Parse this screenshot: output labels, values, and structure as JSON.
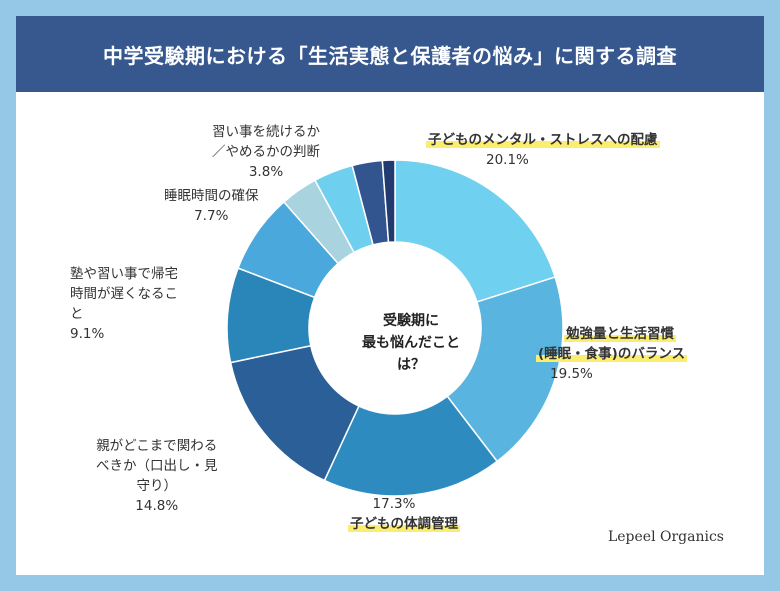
{
  "title": "中学受験期における「生活実態と保護者の悩み」に関する調査",
  "brand": "Lepeel Organics",
  "chart_data": {
    "type": "pie",
    "donut": true,
    "center_label": [
      "受験期に",
      "最も悩んだことは？"
    ],
    "slices": [
      {
        "label": [
          "子どものメンタル・ストレスへの配慮"
        ],
        "value": 20.1,
        "display": "20.1%",
        "color": "#6fd0ef",
        "highlight": true
      },
      {
        "label": [
          "勉強量と生活習慣",
          "(睡眠・食事)のバランス"
        ],
        "value": 19.5,
        "display": "19.5%",
        "color": "#5ab4e0",
        "highlight": true
      },
      {
        "label": [
          "子どもの体調管理"
        ],
        "value": 17.3,
        "display": "17.3%",
        "color": "#2e8bc0",
        "highlight": true
      },
      {
        "label": [
          "親がどこまで関わる",
          "べきか（口出し・見",
          "守り）"
        ],
        "value": 14.8,
        "display": "14.8%",
        "color": "#2a5f98",
        "highlight": false
      },
      {
        "label": [
          "塾や習い事で帰宅",
          "時間が遅くなるこ",
          "と"
        ],
        "value": 9.1,
        "display": "9.1%",
        "color": "#2a86b8",
        "highlight": false
      },
      {
        "label": [
          "睡眠時間の確保"
        ],
        "value": 7.7,
        "display": "7.7%",
        "color": "#4aa8dc",
        "highlight": false
      },
      {
        "label": [],
        "value": 3.6,
        "display": "",
        "color": "#a8d3df",
        "highlight": false
      },
      {
        "label": [
          "習い事を続けるか",
          "／やめるかの判断"
        ],
        "value": 3.8,
        "display": "3.8%",
        "color": "#6ecfee",
        "highlight": false
      },
      {
        "label": [],
        "value": 2.9,
        "display": "",
        "color": "#33558f",
        "highlight": false
      },
      {
        "label": [],
        "value": 1.2,
        "display": "",
        "color": "#233a70",
        "highlight": false
      }
    ]
  }
}
